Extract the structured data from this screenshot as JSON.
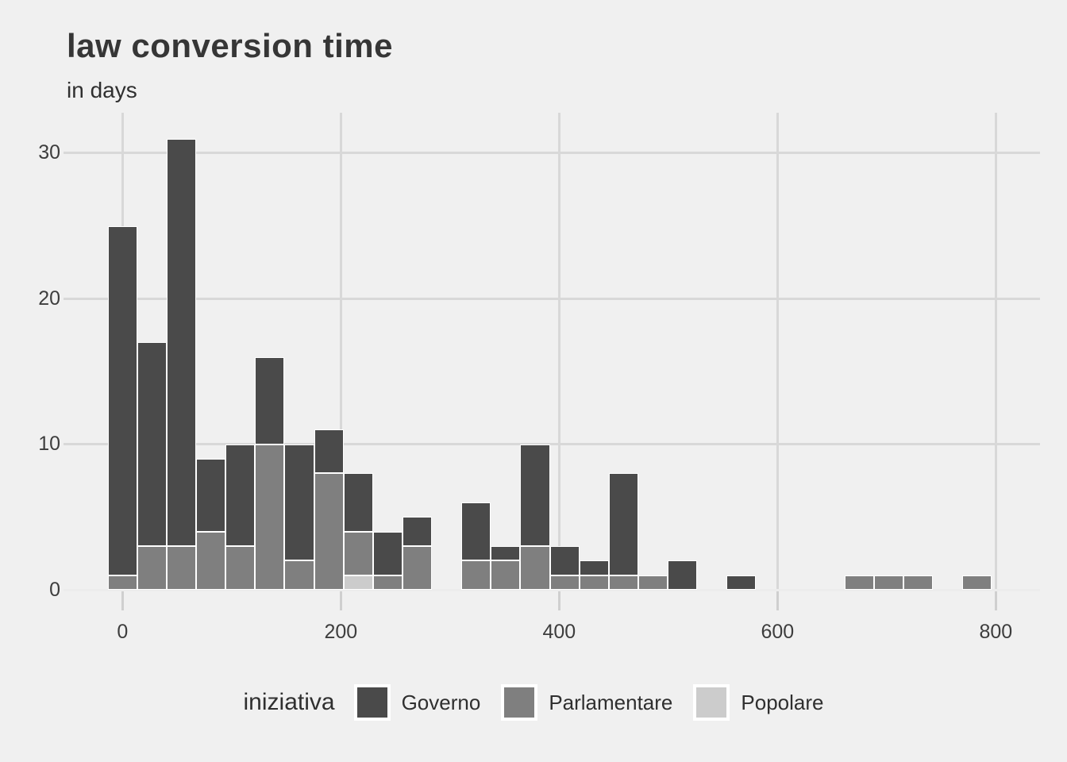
{
  "title": "law conversion time",
  "subtitle": "in days",
  "legend": {
    "title": "iniziativa",
    "items": [
      {
        "label": "Governo",
        "color": "#4A4A4A"
      },
      {
        "label": "Parlamentare",
        "color": "#7F7F7F"
      },
      {
        "label": "Popolare",
        "color": "#CCCCCC"
      }
    ]
  },
  "colors": {
    "background": "#F0F0F0",
    "gridline": "#D8D8D8",
    "baseline": "#ECECEC",
    "tick_stub": "#CFCFCF",
    "title_text": "#363636",
    "axis_text": "#3D3D3D"
  },
  "chart_data": {
    "type": "bar",
    "subtype": "stacked-histogram",
    "title": "law conversion time",
    "subtitle": "in days",
    "xlabel": "",
    "ylabel": "",
    "legend_position": "bottom",
    "grid": true,
    "x_ticks": [
      0,
      200,
      400,
      600,
      800
    ],
    "y_ticks": [
      0,
      10,
      20,
      30
    ],
    "xlim": [
      -50,
      840
    ],
    "ylim": [
      0,
      32.8
    ],
    "bin_width_days": 27,
    "bin_centers": [
      0,
      27,
      54,
      81,
      108,
      135,
      162,
      189,
      216,
      243,
      270,
      324,
      351,
      378,
      405,
      432,
      459,
      486,
      513,
      567,
      675,
      702,
      729,
      783
    ],
    "stack_order_bottom_to_top": [
      "Popolare",
      "Parlamentare",
      "Governo"
    ],
    "series": [
      {
        "name": "Governo",
        "values": [
          24,
          14,
          28,
          5,
          7,
          6,
          8,
          3,
          4,
          3,
          2,
          4,
          1,
          7,
          2,
          1,
          7,
          0,
          2,
          1,
          0,
          0,
          0,
          0
        ]
      },
      {
        "name": "Parlamentare",
        "values": [
          1,
          3,
          3,
          4,
          3,
          10,
          2,
          8,
          3,
          1,
          3,
          2,
          2,
          3,
          1,
          1,
          1,
          1,
          0,
          0,
          1,
          1,
          1,
          1
        ]
      },
      {
        "name": "Popolare",
        "values": [
          0,
          0,
          0,
          0,
          0,
          0,
          0,
          0,
          1,
          0,
          0,
          0,
          0,
          0,
          0,
          0,
          0,
          0,
          0,
          0,
          0,
          0,
          0,
          0
        ]
      }
    ],
    "bin_totals": [
      25,
      17,
      31,
      9,
      10,
      16,
      10,
      11,
      8,
      4,
      5,
      6,
      3,
      10,
      3,
      2,
      8,
      1,
      2,
      1,
      1,
      1,
      1,
      1
    ]
  }
}
